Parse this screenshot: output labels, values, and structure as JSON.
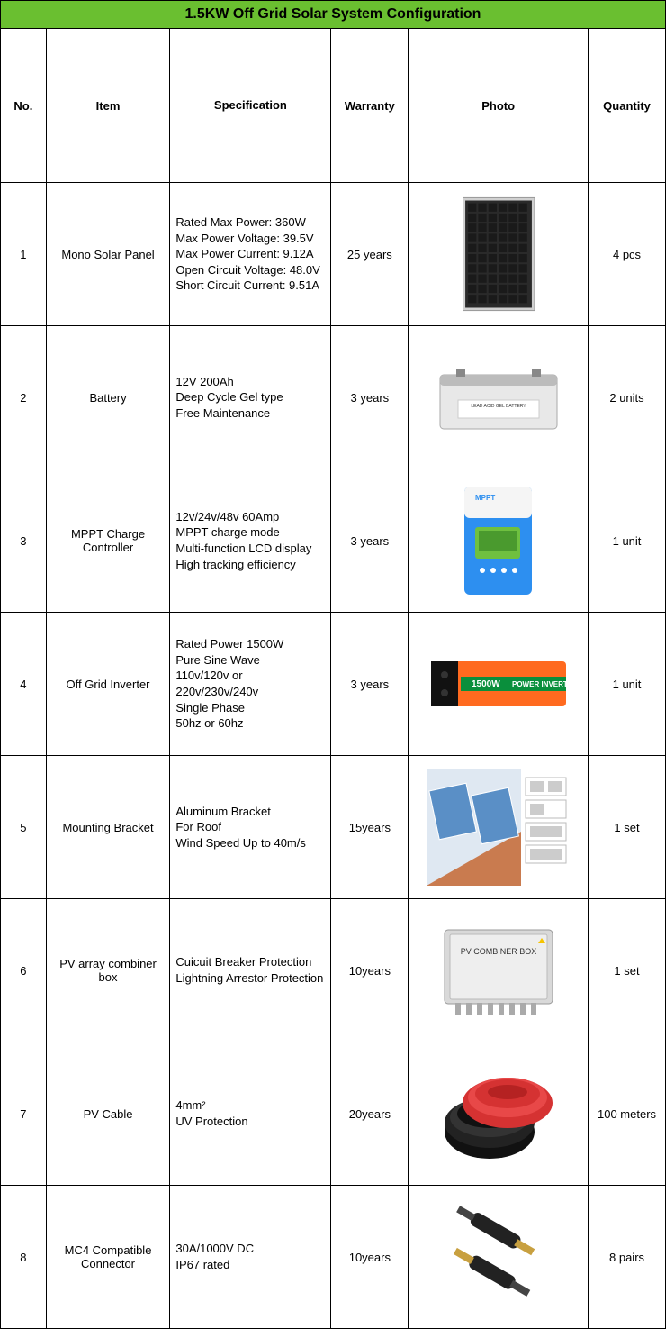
{
  "title": "1.5KW Off Grid Solar System Configuration",
  "colors": {
    "header_bg": "#6abf30",
    "border": "#000000",
    "panel_dark": "#1a1a1a",
    "panel_frame": "#d0d0d0",
    "battery_body": "#e8e8e8",
    "battery_top": "#bcbcbc",
    "controller_blue": "#2d8ff0",
    "controller_white": "#f5f5f5",
    "controller_green": "#6fc040",
    "inverter_orange": "#ff6a1f",
    "inverter_dark": "#111",
    "inverter_green": "#0a8f3c",
    "mount_blue": "#5a8fc6",
    "mount_roof": "#c97b4f",
    "combiner_grey": "#d9d9d9",
    "cable_red": "#d53232",
    "cable_black": "#111",
    "mc4_black": "#222",
    "mc4_gold": "#c8a040"
  },
  "columns": [
    "No.",
    "Item",
    "Specification",
    "Warranty",
    "Photo",
    "Quantity"
  ],
  "rows": [
    {
      "no": "1",
      "item": "Mono Solar Panel",
      "spec": "Rated Max Power: 360W\nMax Power Voltage: 39.5V\nMax Power Current: 9.12A\nOpen Circuit Voltage: 48.0V\nShort Circuit Current: 9.51A",
      "warranty": "25 years",
      "qty": "4 pcs",
      "photo": "solar-panel"
    },
    {
      "no": "2",
      "item": "Battery",
      "spec": "12V 200Ah\nDeep Cycle Gel type\nFree Maintenance",
      "warranty": "3 years",
      "qty": "2 units",
      "photo": "battery"
    },
    {
      "no": "3",
      "item": "MPPT Charge Controller",
      "spec": "12v/24v/48v 60Amp\nMPPT charge mode\nMulti-function LCD display\nHigh tracking efficiency",
      "warranty": "3 years",
      "qty": "1 unit",
      "photo": "controller"
    },
    {
      "no": "4",
      "item": "Off Grid Inverter",
      "spec": "Rated Power 1500W\nPure Sine Wave\n110v/120v or\n220v/230v/240v\nSingle Phase\n50hz or 60hz",
      "warranty": "3 years",
      "qty": "1 unit",
      "photo": "inverter"
    },
    {
      "no": "5",
      "item": "Mounting Bracket",
      "spec": "Aluminum Bracket\nFor Roof\nWind Speed Up to 40m/s",
      "warranty": "15years",
      "qty": "1 set",
      "photo": "mounting"
    },
    {
      "no": "6",
      "item": "PV array combiner box",
      "spec": "Cuicuit Breaker Protection\nLightning Arrestor Protection",
      "warranty": "10years",
      "qty": "1 set",
      "photo": "combiner"
    },
    {
      "no": "7",
      "item": "PV Cable",
      "spec": "4mm²\nUV Protection",
      "warranty": "20years",
      "qty": "100 meters",
      "photo": "cable"
    },
    {
      "no": "8",
      "item": "MC4 Compatible Connector",
      "spec": "30A/1000V DC\nIP67 rated",
      "warranty": "10years",
      "qty": "8 pairs",
      "photo": "mc4"
    }
  ]
}
